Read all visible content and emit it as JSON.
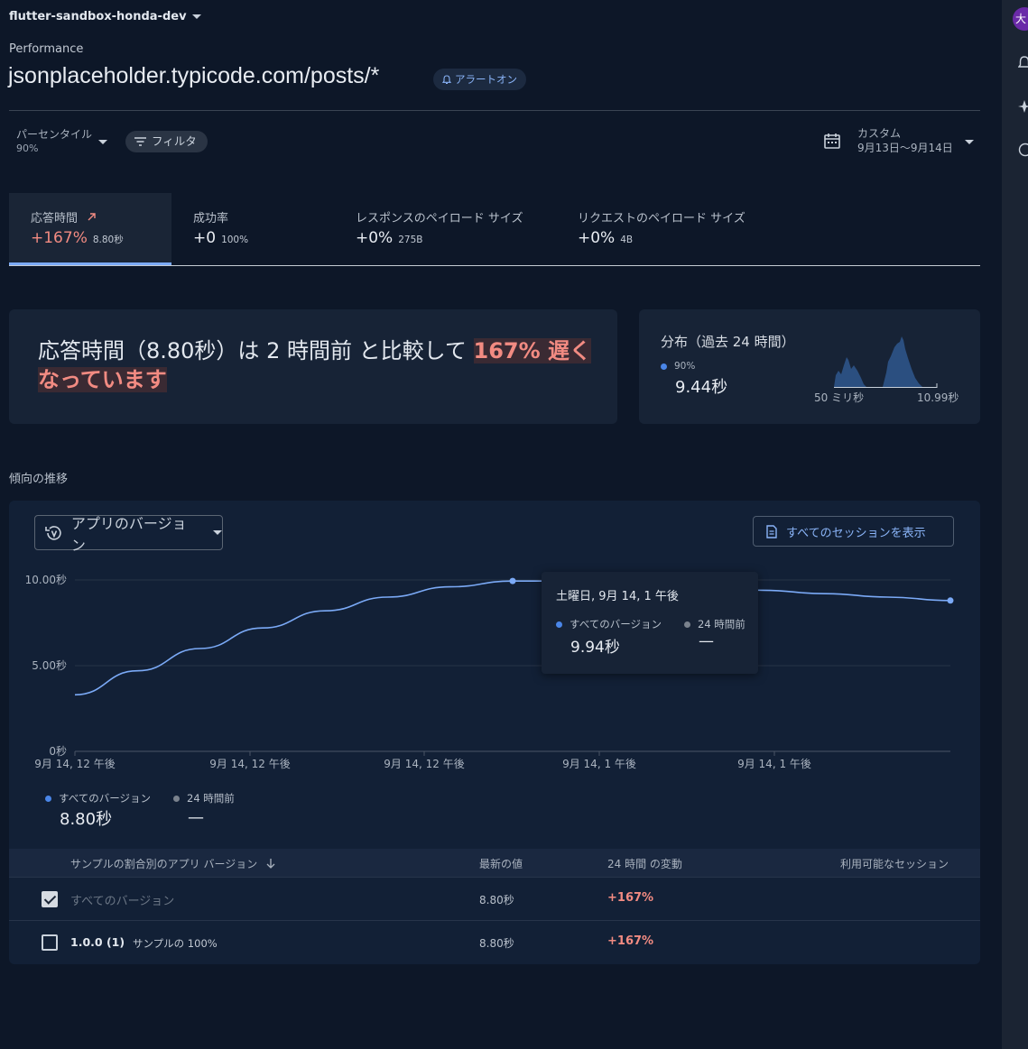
{
  "project": {
    "name": "flutter-sandbox-honda-dev"
  },
  "header": {
    "section": "Performance",
    "title": "jsonplaceholder.typicode.com/posts/*",
    "alert_chip": "アラートオン"
  },
  "filters": {
    "percentile_label": "パーセンタイル",
    "percentile_value": "90%",
    "filter_label": "フィルタ",
    "date_label": "カスタム",
    "date_range": "9月13日〜9月14日"
  },
  "metric_tabs": [
    {
      "label": "応答時間",
      "change": "+167%",
      "value": "8.80秒",
      "trend_icon": "arrow-up-right-icon"
    },
    {
      "label": "成功率",
      "change": "+0",
      "value": "100%"
    },
    {
      "label": "レスポンスのペイロード サイズ",
      "change": "+0%",
      "value": "275B"
    },
    {
      "label": "リクエストのペイロード サイズ",
      "change": "+0%",
      "value": "4B"
    }
  ],
  "summary": {
    "text_prefix": "応答時間（8.80秒）は 2 時間前 と比較して ",
    "highlight": "167% 遅くなっています"
  },
  "distribution": {
    "title": "分布（過去 24 時間）",
    "percentile": "90%",
    "value": "9.44秒",
    "min_label": "50 ミリ秒",
    "max_label": "10.99秒"
  },
  "trends": {
    "title": "傾向の推移",
    "version_select": "アプリのバージョン",
    "sessions_button": "すべてのセッションを表示",
    "tooltip": {
      "title": "土曜日, 9月 14, 1 午後",
      "series1_label": "すべてのバージョン",
      "series1_value": "9.94秒",
      "series2_label": "24 時間前",
      "series2_value": "—"
    },
    "legend": {
      "series1_label": "すべてのバージョン",
      "series1_value": "8.80秒",
      "series2_label": "24 時間前",
      "series2_value": "—"
    }
  },
  "chart_data": {
    "type": "line",
    "y_ticks": [
      "10.00秒",
      "5.00秒",
      "0秒"
    ],
    "x_ticks": [
      "9月 14, 12 午後",
      "9月 14, 12 午後",
      "9月 14, 12 午後",
      "9月 14, 1 午後",
      "9月 14, 1 午後"
    ],
    "ylim": [
      0,
      10
    ],
    "series": [
      {
        "name": "すべてのバージョン",
        "color": "#7baaf7",
        "values": [
          3.3,
          4.7,
          6.0,
          7.2,
          8.2,
          9.0,
          9.6,
          9.94,
          9.94,
          9.8,
          9.6,
          9.4,
          9.2,
          9.0,
          8.8
        ]
      }
    ],
    "grid": true
  },
  "table": {
    "headers": [
      "サンプルの割合別のアプリ バージョン",
      "最新の値",
      "24 時間 の変動",
      "利用可能なセッション"
    ],
    "rows": [
      {
        "name": "すべてのバージョン",
        "sample": "",
        "latest": "8.80秒",
        "change": "+167%",
        "checked": true
      },
      {
        "name": "1.0.0 (1)",
        "sample": "サンプルの 100%",
        "latest": "8.80秒",
        "change": "+167%",
        "checked": false
      }
    ]
  },
  "right_rail": {
    "avatar_text": "大"
  }
}
